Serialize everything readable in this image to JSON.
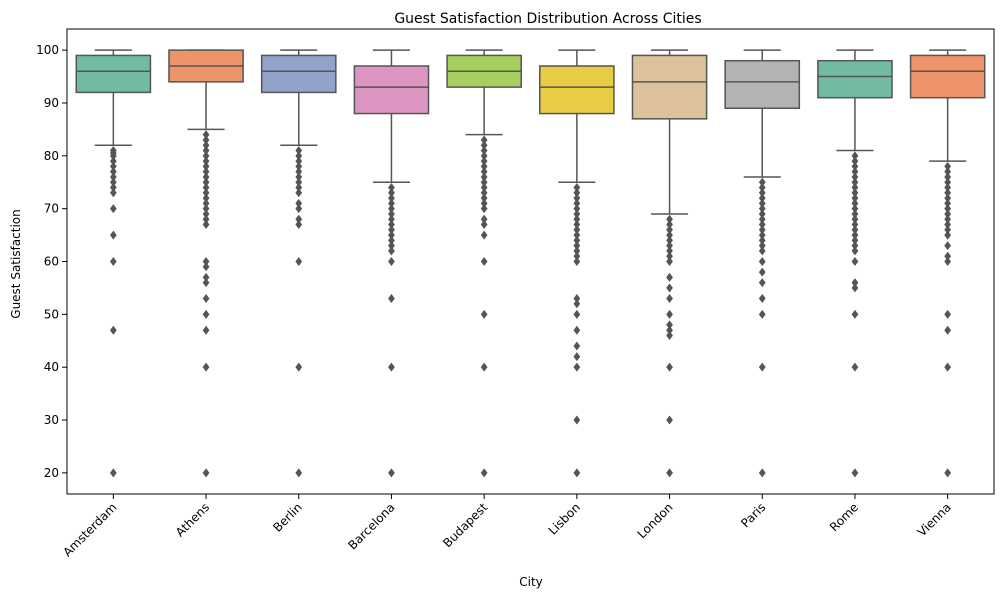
{
  "chart_data": {
    "type": "boxplot",
    "title": "Guest Satisfaction Distribution Across Cities",
    "xlabel": "City",
    "ylabel": "Guest Satisfaction",
    "ylim": [
      16,
      104
    ],
    "yticks": [
      20,
      30,
      40,
      50,
      60,
      70,
      80,
      90,
      100
    ],
    "grid": false,
    "box_colors": [
      "#71bba4",
      "#ee946a",
      "#92a3c9",
      "#dd95c2",
      "#a6cf60",
      "#e8cc43",
      "#dbc29a",
      "#b3b3b3",
      "#71bba4",
      "#ee946a"
    ],
    "line_color": "#555555",
    "categories": [
      "Amsterdam",
      "Athens",
      "Berlin",
      "Barcelona",
      "Budapest",
      "Lisbon",
      "London",
      "Paris",
      "Rome",
      "Vienna"
    ],
    "boxes": [
      {
        "whisker_low": 82,
        "q1": 92,
        "median": 96,
        "q3": 99,
        "whisker_high": 100,
        "outliers": [
          81,
          80.5,
          80,
          79,
          78,
          77,
          76,
          75,
          74,
          73,
          70,
          65,
          60,
          47,
          20
        ]
      },
      {
        "whisker_low": 85,
        "q1": 94,
        "median": 97,
        "q3": 100,
        "whisker_high": 100,
        "outliers": [
          84,
          83,
          82,
          81,
          80,
          79,
          78,
          77,
          76,
          75,
          74,
          73,
          72,
          71,
          70,
          69,
          68,
          67,
          60,
          59,
          57,
          56,
          53,
          50,
          47,
          40,
          20
        ]
      },
      {
        "whisker_low": 82,
        "q1": 92,
        "median": 96,
        "q3": 99,
        "whisker_high": 100,
        "outliers": [
          81,
          80,
          79,
          78,
          77,
          76,
          75,
          74,
          73,
          71,
          70,
          68,
          67,
          60,
          40,
          20
        ]
      },
      {
        "whisker_low": 75,
        "q1": 88,
        "median": 93,
        "q3": 97,
        "whisker_high": 100,
        "outliers": [
          74,
          73,
          72,
          71,
          70,
          69,
          68,
          67,
          66,
          65,
          64,
          63,
          62,
          60,
          53,
          40,
          20
        ]
      },
      {
        "whisker_low": 84,
        "q1": 93,
        "median": 96,
        "q3": 99,
        "whisker_high": 100,
        "outliers": [
          83,
          82,
          81,
          80,
          79,
          78,
          77,
          76,
          75,
          74,
          73,
          72,
          71,
          70,
          68,
          67,
          65,
          60,
          50,
          40,
          20
        ]
      },
      {
        "whisker_low": 75,
        "q1": 88,
        "median": 93,
        "q3": 97,
        "whisker_high": 100,
        "outliers": [
          74,
          73,
          72,
          71,
          70,
          69,
          68,
          67,
          66,
          65,
          64,
          63,
          62,
          61,
          60,
          53,
          52,
          50,
          47,
          44,
          42,
          40,
          30,
          20
        ]
      },
      {
        "whisker_low": 69,
        "q1": 87,
        "median": 94,
        "q3": 99,
        "whisker_high": 100,
        "outliers": [
          68,
          67,
          66,
          65,
          64,
          63,
          62,
          61,
          60,
          57,
          55,
          53,
          50,
          48,
          47,
          46,
          40,
          30,
          20
        ]
      },
      {
        "whisker_low": 76,
        "q1": 89,
        "median": 94,
        "q3": 98,
        "whisker_high": 100,
        "outliers": [
          75,
          74,
          73,
          72,
          71,
          70,
          69,
          68,
          67,
          66,
          65,
          64,
          63,
          62,
          60,
          58,
          56,
          53,
          50,
          40,
          20
        ]
      },
      {
        "whisker_low": 81,
        "q1": 91,
        "median": 95,
        "q3": 98,
        "whisker_high": 100,
        "outliers": [
          80,
          79,
          78,
          77,
          76,
          75,
          74,
          73,
          72,
          71,
          70,
          69,
          68,
          67,
          66,
          65,
          64,
          63,
          62,
          60,
          56,
          55,
          50,
          40,
          20
        ]
      },
      {
        "whisker_low": 79,
        "q1": 91,
        "median": 96,
        "q3": 99,
        "whisker_high": 100,
        "outliers": [
          78,
          77,
          76,
          75,
          74,
          73,
          72,
          71,
          70,
          69,
          68,
          67,
          66,
          65,
          63,
          61,
          60,
          50,
          47,
          40,
          20
        ]
      }
    ]
  }
}
